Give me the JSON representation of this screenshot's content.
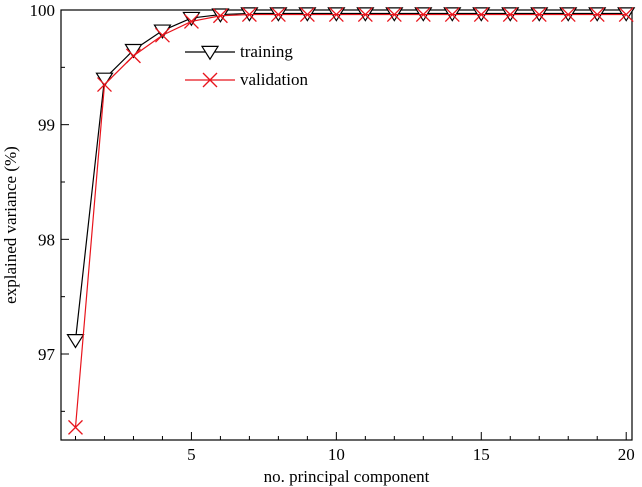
{
  "chart_data": {
    "type": "line",
    "xlabel": "no. principal component",
    "ylabel": "explained variance (%)",
    "xlim": [
      0.5,
      20.2
    ],
    "ylim": [
      96.25,
      100
    ],
    "xticks": [
      5,
      10,
      15,
      20
    ],
    "xtick_labels": [
      "5",
      "10",
      "15",
      "20"
    ],
    "yticks": [
      97,
      98,
      99,
      100
    ],
    "ytick_labels": [
      "97",
      "98",
      "99",
      "100"
    ],
    "grid": false,
    "legend_position": "top-center",
    "x": [
      1,
      2,
      3,
      4,
      5,
      6,
      7,
      8,
      9,
      10,
      11,
      12,
      13,
      14,
      15,
      16,
      17,
      18,
      19,
      20
    ],
    "series": [
      {
        "name": "training",
        "color": "#000000",
        "marker": "triangle-down-open",
        "values": [
          97.12,
          99.4,
          99.65,
          99.82,
          99.93,
          99.96,
          99.97,
          99.97,
          99.97,
          99.97,
          99.97,
          99.97,
          99.97,
          99.97,
          99.97,
          99.97,
          99.97,
          99.97,
          99.97,
          99.97
        ]
      },
      {
        "name": "validation",
        "color": "#e8141c",
        "marker": "x",
        "values": [
          96.36,
          99.35,
          99.6,
          99.78,
          99.9,
          99.95,
          99.96,
          99.96,
          99.96,
          99.96,
          99.96,
          99.96,
          99.96,
          99.96,
          99.96,
          99.96,
          99.96,
          99.96,
          99.96,
          99.96
        ]
      }
    ]
  }
}
